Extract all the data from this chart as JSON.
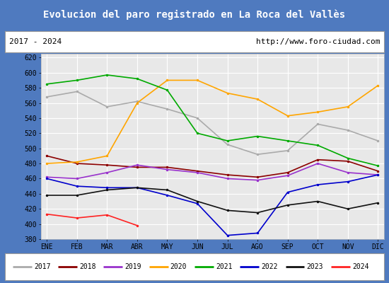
{
  "title": "Evolucion del paro registrado en La Roca del Vallès",
  "subtitle_left": "2017 - 2024",
  "subtitle_right": "http://www.foro-ciudad.com",
  "title_bg": "#4f7abf",
  "title_color": "white",
  "ylim": [
    380,
    625
  ],
  "yticks": [
    380,
    400,
    420,
    440,
    460,
    480,
    500,
    520,
    540,
    560,
    580,
    600,
    620
  ],
  "months": [
    "ENE",
    "FEB",
    "MAR",
    "ABR",
    "MAY",
    "JUN",
    "JUL",
    "AGO",
    "SEP",
    "OCT",
    "NOV",
    "DIC"
  ],
  "series": {
    "2017": {
      "color": "#aaaaaa",
      "linewidth": 1.2,
      "values": [
        568,
        575,
        555,
        562,
        552,
        540,
        505,
        492,
        497,
        532,
        524,
        510
      ]
    },
    "2018": {
      "color": "#8b0000",
      "linewidth": 1.2,
      "values": [
        490,
        480,
        478,
        475,
        475,
        470,
        465,
        462,
        468,
        485,
        483,
        470
      ]
    },
    "2019": {
      "color": "#9932cc",
      "linewidth": 1.2,
      "values": [
        462,
        460,
        468,
        478,
        472,
        468,
        460,
        458,
        464,
        480,
        468,
        465
      ]
    },
    "2020": {
      "color": "#ffa500",
      "linewidth": 1.2,
      "values": [
        480,
        482,
        490,
        560,
        590,
        590,
        573,
        565,
        543,
        548,
        555,
        583
      ]
    },
    "2021": {
      "color": "#00aa00",
      "linewidth": 1.2,
      "values": [
        585,
        590,
        597,
        592,
        577,
        520,
        510,
        516,
        510,
        504,
        487,
        477
      ]
    },
    "2022": {
      "color": "#0000cc",
      "linewidth": 1.2,
      "values": [
        460,
        450,
        448,
        448,
        438,
        427,
        385,
        388,
        442,
        452,
        456,
        465
      ]
    },
    "2023": {
      "color": "#111111",
      "linewidth": 1.2,
      "values": [
        438,
        438,
        445,
        448,
        445,
        430,
        418,
        415,
        425,
        430,
        420,
        428
      ]
    },
    "2024": {
      "color": "#ff2222",
      "linewidth": 1.2,
      "values": [
        413,
        408,
        412,
        398,
        null,
        null,
        null,
        null,
        null,
        null,
        null,
        null
      ]
    }
  }
}
